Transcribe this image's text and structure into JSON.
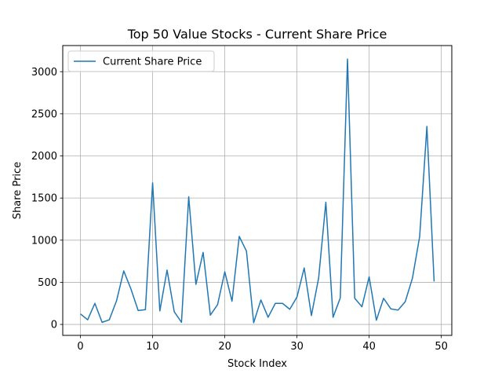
{
  "chart_data": {
    "type": "line",
    "title": "Top 50 Value Stocks - Current Share Price",
    "xlabel": "Stock Index",
    "ylabel": "Share Price",
    "xlim": [
      -2.45,
      51.45
    ],
    "ylim": [
      -130,
      3310
    ],
    "xticks": [
      0,
      10,
      20,
      30,
      40,
      50
    ],
    "yticks": [
      0,
      500,
      1000,
      1500,
      2000,
      2500,
      3000
    ],
    "grid": true,
    "legend_position": "upper-left",
    "series": [
      {
        "name": "Current Share Price",
        "color": "#1f77b4",
        "x": [
          0,
          1,
          2,
          3,
          4,
          5,
          6,
          7,
          8,
          9,
          10,
          11,
          12,
          13,
          14,
          15,
          16,
          17,
          18,
          19,
          20,
          21,
          22,
          23,
          24,
          25,
          26,
          27,
          28,
          29,
          30,
          31,
          32,
          33,
          34,
          35,
          36,
          37,
          38,
          39,
          40,
          41,
          42,
          43,
          44,
          45,
          46,
          47,
          48,
          49
        ],
        "values": [
          125,
          55,
          250,
          25,
          55,
          280,
          635,
          420,
          165,
          175,
          1680,
          160,
          645,
          150,
          25,
          1515,
          475,
          855,
          110,
          235,
          625,
          275,
          1045,
          870,
          20,
          290,
          85,
          250,
          250,
          180,
          325,
          670,
          105,
          550,
          1450,
          85,
          315,
          3150,
          310,
          210,
          565,
          50,
          310,
          185,
          170,
          270,
          550,
          1045,
          2350,
          510
        ]
      }
    ]
  }
}
